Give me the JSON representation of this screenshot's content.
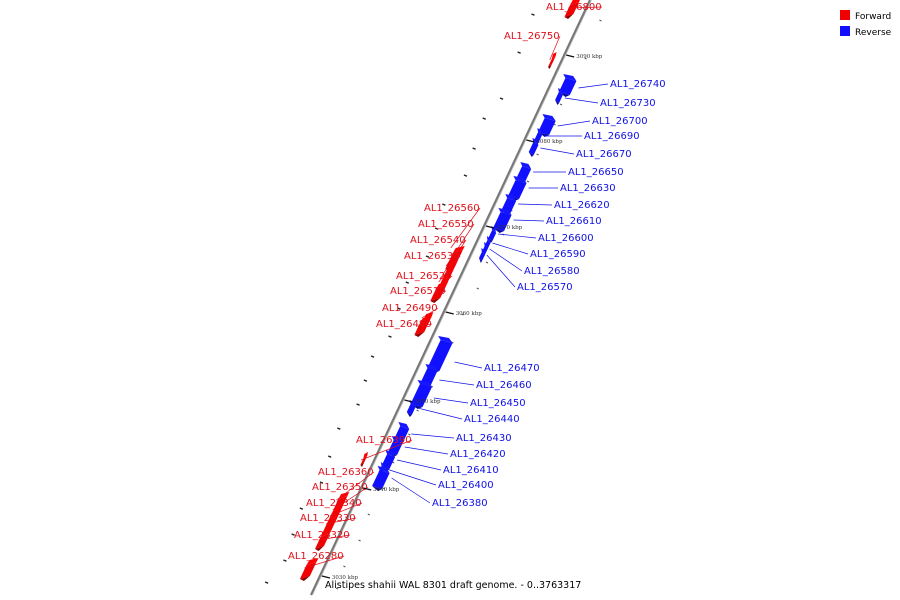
{
  "caption": "Alistipes shahii WAL 8301 draft genome. - 0..3763317",
  "legend": [
    {
      "label": "Forward",
      "color": "#f00000"
    },
    {
      "label": "Reverse",
      "color": "#1010ff"
    }
  ],
  "colors": {
    "forward": "#f00000",
    "forward_label": "#e0101a",
    "reverse": "#1010ff",
    "reverse_label": "#1010e8",
    "backbone": "#777777"
  },
  "scale_ticks": [
    "3090 kbp",
    "3080 kbp",
    "3070 kbp",
    "3060 kbp",
    "3050 kbp",
    "3040 kbp",
    "3030 kbp"
  ],
  "genes": [
    {
      "label": "AL1_26800",
      "strand": "forward"
    },
    {
      "label": "AL1_26750",
      "strand": "forward"
    },
    {
      "label": "AL1_26740",
      "strand": "reverse"
    },
    {
      "label": "AL1_26730",
      "strand": "reverse"
    },
    {
      "label": "AL1_26700",
      "strand": "reverse"
    },
    {
      "label": "AL1_26690",
      "strand": "reverse"
    },
    {
      "label": "AL1_26670",
      "strand": "reverse"
    },
    {
      "label": "AL1_26650",
      "strand": "reverse"
    },
    {
      "label": "AL1_26630",
      "strand": "reverse"
    },
    {
      "label": "AL1_26620",
      "strand": "reverse"
    },
    {
      "label": "AL1_26610",
      "strand": "reverse"
    },
    {
      "label": "AL1_26600",
      "strand": "reverse"
    },
    {
      "label": "AL1_26590",
      "strand": "reverse"
    },
    {
      "label": "AL1_26580",
      "strand": "reverse"
    },
    {
      "label": "AL1_26570",
      "strand": "reverse"
    },
    {
      "label": "AL1_26560",
      "strand": "forward"
    },
    {
      "label": "AL1_26550",
      "strand": "forward"
    },
    {
      "label": "AL1_26540",
      "strand": "forward"
    },
    {
      "label": "AL1_26530",
      "strand": "forward"
    },
    {
      "label": "AL1_26520",
      "strand": "forward"
    },
    {
      "label": "AL1_26510",
      "strand": "forward"
    },
    {
      "label": "AL1_26490",
      "strand": "forward"
    },
    {
      "label": "AL1_26480",
      "strand": "forward"
    },
    {
      "label": "AL1_26470",
      "strand": "reverse"
    },
    {
      "label": "AL1_26460",
      "strand": "reverse"
    },
    {
      "label": "AL1_26450",
      "strand": "reverse"
    },
    {
      "label": "AL1_26440",
      "strand": "reverse"
    },
    {
      "label": "AL1_26430",
      "strand": "reverse"
    },
    {
      "label": "AL1_26420",
      "strand": "reverse"
    },
    {
      "label": "AL1_26410",
      "strand": "reverse"
    },
    {
      "label": "AL1_26400",
      "strand": "reverse"
    },
    {
      "label": "AL1_26380",
      "strand": "reverse"
    },
    {
      "label": "AL1_26390",
      "strand": "forward"
    },
    {
      "label": "AL1_26360",
      "strand": "forward"
    },
    {
      "label": "AL1_26350",
      "strand": "forward"
    },
    {
      "label": "AL1_26340",
      "strand": "forward"
    },
    {
      "label": "AL1_26330",
      "strand": "forward"
    },
    {
      "label": "AL1_26320",
      "strand": "forward"
    },
    {
      "label": "AL1_26280",
      "strand": "forward"
    }
  ]
}
